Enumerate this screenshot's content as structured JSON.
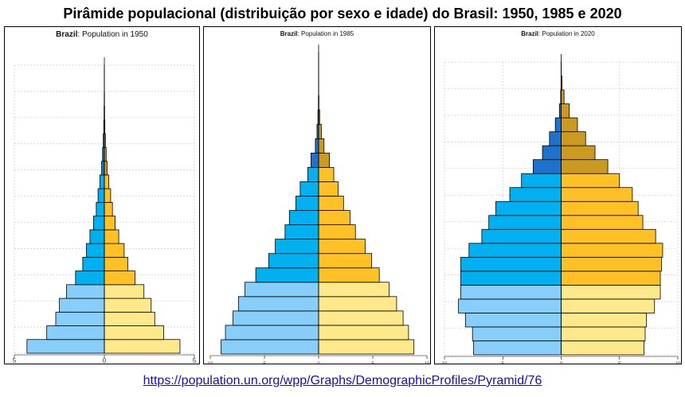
{
  "title": "Pirâmide populacional (distribuição por sexo e idade) do Brasil: 1950, 1985 e 2020",
  "source_url": "https://population.un.org/wpp/Graphs/DemographicProfiles/Pyramid/76",
  "colors": {
    "male": [
      "#87CEFA",
      "#00B0F0",
      "#1E72CC"
    ],
    "female": [
      "#FFE98A",
      "#FFC125",
      "#CC9A20"
    ]
  },
  "chart_data": [
    {
      "type": "bar",
      "country": "Brazil",
      "title_suffix": ": Population in 1950",
      "age_groups_count": 21,
      "x_ticks": [
        "5",
        "0",
        "5"
      ],
      "xlim": [
        -5,
        5
      ],
      "grid": true,
      "series": [
        {
          "name": "male",
          "values": [
            4.3,
            3.2,
            2.7,
            2.5,
            2.1,
            1.6,
            1.2,
            1.0,
            0.8,
            0.6,
            0.45,
            0.35,
            0.25,
            0.15,
            0.1,
            0.06,
            0.03,
            0.015,
            0.008,
            0.003,
            0.001
          ]
        },
        {
          "name": "female",
          "values": [
            4.2,
            3.3,
            2.8,
            2.6,
            2.2,
            1.7,
            1.3,
            1.1,
            0.8,
            0.6,
            0.45,
            0.35,
            0.25,
            0.15,
            0.1,
            0.06,
            0.03,
            0.015,
            0.008,
            0.003,
            0.001
          ]
        }
      ]
    },
    {
      "type": "bar",
      "country": "Brazil",
      "title_suffix": ": Population in 1985",
      "age_groups_count": 21,
      "x_ticks": [
        "10",
        "5",
        "0",
        "5",
        "10"
      ],
      "xlim": [
        -10,
        10
      ],
      "grid": false,
      "series": [
        {
          "name": "male",
          "values": [
            9.0,
            8.6,
            7.9,
            7.4,
            6.8,
            5.8,
            4.6,
            4.0,
            3.1,
            2.7,
            2.1,
            1.7,
            1.0,
            0.7,
            0.3,
            0.15,
            0.06,
            0.02,
            0.005,
            0.002,
            0.001
          ]
        },
        {
          "name": "female",
          "values": [
            8.8,
            8.3,
            7.8,
            7.2,
            6.5,
            5.6,
            4.9,
            4.3,
            3.4,
            2.9,
            2.3,
            1.8,
            1.4,
            1.0,
            0.5,
            0.25,
            0.1,
            0.03,
            0.01,
            0.003,
            0.001
          ]
        }
      ]
    },
    {
      "type": "bar",
      "country": "Brazil",
      "title_suffix": ": Population in 2020",
      "age_groups_count": 21,
      "x_ticks": [
        "10",
        "5",
        "0",
        "5",
        "10"
      ],
      "xlim": [
        -10,
        10
      ],
      "grid": true,
      "series": [
        {
          "name": "male",
          "values": [
            7.5,
            7.6,
            8.2,
            8.8,
            8.6,
            8.6,
            8.6,
            7.9,
            6.8,
            6.2,
            5.6,
            4.4,
            3.4,
            2.4,
            1.6,
            1.0,
            0.5,
            0.15,
            0.04,
            0.01,
            0.003
          ]
        },
        {
          "name": "female",
          "values": [
            7.1,
            7.2,
            7.3,
            8.0,
            8.5,
            8.5,
            8.6,
            8.7,
            8.1,
            7.0,
            6.6,
            6.1,
            5.0,
            4.0,
            2.9,
            2.1,
            1.4,
            0.7,
            0.25,
            0.08,
            0.01
          ]
        }
      ]
    }
  ]
}
